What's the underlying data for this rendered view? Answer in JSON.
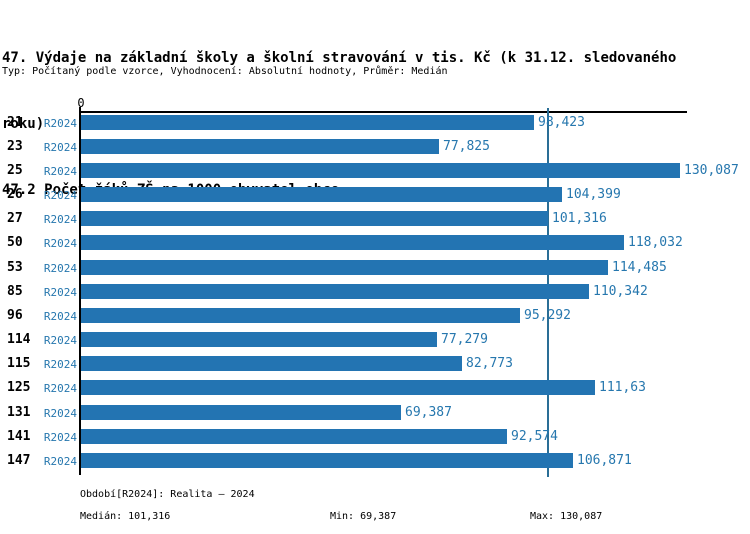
{
  "header": {
    "title_line1": "47. Výdaje na základní školy a školní stravování v tis. Kč (k 31.12. sledovaného",
    "title_line2": "roku)",
    "subtitle": "47.2 Počet žáků ZŠ na 1000 obyvatel obce",
    "meta": "Typ: Počítaný podle vzorce, Vyhodnocení: Absolutní hodnoty, Průměr: Medián"
  },
  "axis": {
    "zero_label": "0"
  },
  "footer": {
    "period": "Období[R2024]: Realita – 2024",
    "median": "Medián: 101,316",
    "min": "Min: 69,387",
    "max": "Max: 130,087"
  },
  "colors": {
    "bar": "#2374b2",
    "median_line": "#2a6e96",
    "blue_text": "#2677ae",
    "axis": "#000000"
  },
  "chart_data": {
    "type": "bar",
    "orientation": "horizontal",
    "title": "47. Výdaje na základní školy a školní stravování v tis. Kč (k 31.12. sledovaného roku)",
    "subtitle": "47.2 Počet žáků ZŠ na 1000 obyvatel obce",
    "evaluation_note": "Typ: Počítaný podle vzorce, Vyhodnocení: Absolutní hodnoty, Průměr: Medián",
    "categories": [
      "21",
      "23",
      "25",
      "26",
      "27",
      "50",
      "53",
      "85",
      "96",
      "114",
      "115",
      "125",
      "131",
      "141",
      "147"
    ],
    "series": [
      {
        "name": "R2024",
        "values": [
          98.423,
          77.825,
          130.087,
          104.399,
          101.316,
          118.032,
          114.485,
          110.342,
          95.292,
          77.279,
          82.773,
          111.63,
          69.387,
          92.574,
          106.871
        ],
        "value_labels": [
          "98,423",
          "77,825",
          "130,087",
          "104,399",
          "101,316",
          "118,032",
          "114,485",
          "110,342",
          "95,292",
          "77,279",
          "82,773",
          "111,63",
          "69,387",
          "92,574",
          "106,871"
        ]
      }
    ],
    "xlim": [
      0,
      130.087
    ],
    "xtick_labels": [
      "0"
    ],
    "median": 101.316,
    "min": 69.387,
    "max": 130.087,
    "grid": false,
    "legend_position": "none"
  }
}
